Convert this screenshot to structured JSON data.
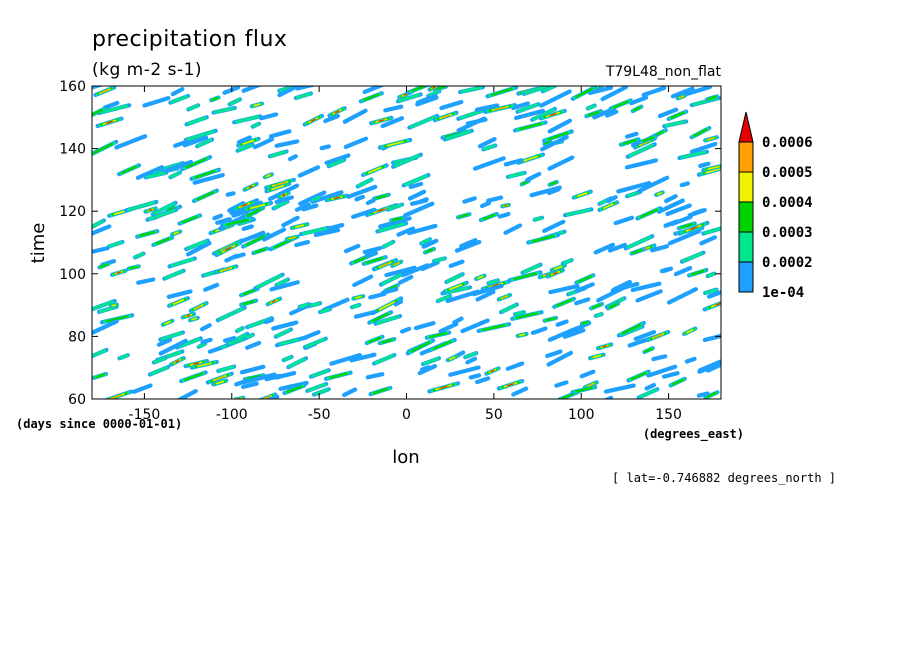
{
  "chart_data": {
    "type": "heatmap",
    "title": "precipitation flux",
    "subtitle": "(kg m-2 s-1)",
    "experiment": "T79L48_non_flat",
    "xlabel": "lon",
    "x_units": "(degrees_east)",
    "ylabel": "time",
    "y_units": "(days since 0000-01-01)",
    "annotation": "[ lat=-0.746882 degrees_north ]",
    "xlim": [
      -180,
      180
    ],
    "ylim": [
      60,
      160
    ],
    "x_ticks": [
      -150,
      -100,
      -50,
      0,
      50,
      100,
      150
    ],
    "x_tick_labels": [
      "-150",
      "-100",
      "-50",
      "0",
      "50",
      "100",
      "150"
    ],
    "y_ticks": [
      60,
      80,
      100,
      120,
      140,
      160
    ],
    "y_tick_labels": [
      "60",
      "80",
      "100",
      "120",
      "140",
      "160"
    ],
    "colorbar": {
      "levels": [
        0.0001,
        0.0002,
        0.0003,
        0.0004,
        0.0005,
        0.0006
      ],
      "level_labels": [
        "1e-04",
        "0.0002",
        "0.0003",
        "0.0004",
        "0.0005",
        "0.0006"
      ],
      "colors": [
        "#1ea0ff",
        "#00e68c",
        "#00d200",
        "#f0f000",
        "#ffa000",
        "#e60000"
      ],
      "extend": "max"
    },
    "grid": false,
    "pattern": "scattered eastward-propagating precipitation streaks across all longitudes"
  }
}
